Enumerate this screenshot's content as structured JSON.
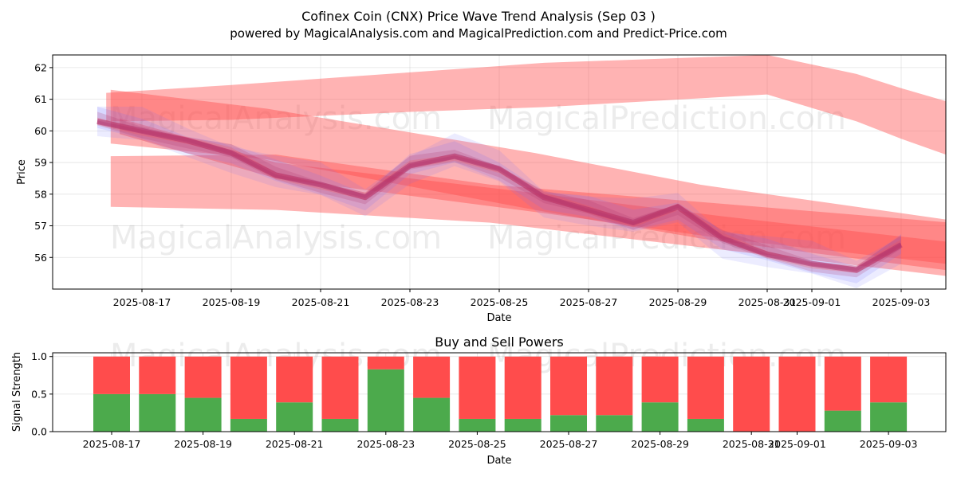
{
  "figure": {
    "title": "Cofinex Coin (CNX) Price Wave Trend Analysis (Sep 03 )",
    "subtitle": "powered by MagicalAnalysis.com and MagicalPrediction.com and Predict-Price.com",
    "watermarks": [
      "MagicalAnalysis.com",
      "MagicalPrediction.com",
      "MagicalAnalysis.com",
      "MagicalPrediction.com",
      "MagicalAnalysis.com",
      "MagicalPrediction.com"
    ]
  },
  "colors": {
    "red_band": "#ff4a4a",
    "blue_band": "#6f6fff",
    "purple_band": "#b0306a",
    "buy": "#4caa4c",
    "sell": "#ff4c4c"
  },
  "chart_data": [
    {
      "type": "area",
      "title": "",
      "xlabel": "Date",
      "ylabel": "Price",
      "xlim": [
        "2025-08-15",
        "2025-09-04"
      ],
      "ylim": [
        55.0,
        62.4
      ],
      "yticks": [
        56,
        57,
        58,
        59,
        60,
        61,
        62
      ],
      "xtick_labels": [
        "2025-08-17",
        "2025-08-19",
        "2025-08-21",
        "2025-08-23",
        "2025-08-25",
        "2025-08-27",
        "2025-08-29",
        "2025-08-31",
        "2025-09-01",
        "2025-09-03"
      ],
      "xtick_dates": [
        "2025-08-17",
        "2025-08-19",
        "2025-08-21",
        "2025-08-23",
        "2025-08-25",
        "2025-08-27",
        "2025-08-29",
        "2025-08-31",
        "2025-09-01",
        "2025-09-03"
      ],
      "dates": [
        "2025-08-16",
        "2025-08-17",
        "2025-08-18",
        "2025-08-19",
        "2025-08-20",
        "2025-08-21",
        "2025-08-22",
        "2025-08-23",
        "2025-08-24",
        "2025-08-25",
        "2025-08-26",
        "2025-08-27",
        "2025-08-28",
        "2025-08-29",
        "2025-08-30",
        "2025-08-31",
        "2025-09-01",
        "2025-09-02",
        "2025-09-03"
      ],
      "price": [
        60.3,
        60.0,
        59.7,
        59.3,
        58.6,
        58.3,
        57.9,
        58.9,
        59.2,
        58.8,
        57.9,
        57.5,
        57.1,
        57.6,
        56.6,
        56.1,
        55.8,
        55.6,
        56.4
      ],
      "bands": [
        {
          "name": "upper-trend",
          "color": "red",
          "upper": [
            [
              15.2,
              61.2
            ],
            [
              18,
              61.45
            ],
            [
              22,
              61.85
            ],
            [
              25,
              62.15
            ],
            [
              30,
              62.4
            ],
            [
              32,
              61.8
            ],
            [
              33,
              61.35
            ],
            [
              34.1,
              60.9
            ]
          ],
          "lower": [
            [
              15.2,
              60.3
            ],
            [
              18,
              60.35
            ],
            [
              22,
              60.6
            ],
            [
              25,
              60.75
            ],
            [
              30,
              61.15
            ],
            [
              32,
              60.3
            ],
            [
              33,
              59.75
            ],
            [
              34.1,
              59.2
            ]
          ]
        },
        {
          "name": "upper-broad",
          "color": "red",
          "upper": [
            [
              15.3,
              61.3
            ],
            [
              18.8,
              60.7
            ],
            [
              24.8,
              59.3
            ],
            [
              28.5,
              58.3
            ],
            [
              34,
              57.2
            ]
          ],
          "lower": [
            [
              15.3,
              59.6
            ],
            [
              18.8,
              59.1
            ],
            [
              24.8,
              57.5
            ],
            [
              28.5,
              56.6
            ],
            [
              34,
              55.6
            ]
          ]
        },
        {
          "name": "lower-broad",
          "color": "red",
          "upper": [
            [
              15.3,
              59.2
            ],
            [
              19,
              59.25
            ],
            [
              23.8,
              58.3
            ],
            [
              34.1,
              57.1
            ]
          ],
          "lower": [
            [
              15.3,
              57.6
            ],
            [
              19,
              57.5
            ],
            [
              23.8,
              57.1
            ],
            [
              34.1,
              55.4
            ]
          ]
        },
        {
          "name": "trend-lower",
          "color": "red",
          "upper": [
            [
              15.5,
              60.4
            ],
            [
              19,
              59.0
            ],
            [
              25,
              58.0
            ],
            [
              29,
              57.3
            ],
            [
              34,
              56.5
            ]
          ],
          "lower": [
            [
              15.5,
              59.9
            ],
            [
              19,
              58.5
            ],
            [
              25,
              57.4
            ],
            [
              29,
              56.6
            ],
            [
              34,
              55.8
            ]
          ]
        }
      ],
      "wave_offsets": [
        0.85,
        0.55,
        0.35,
        0.2,
        0.1
      ]
    },
    {
      "type": "bar",
      "title": "Buy and Sell Powers",
      "xlabel": "Date",
      "ylabel": "Signal Strength",
      "ylim": [
        0,
        1.05
      ],
      "yticks": [
        0.0,
        0.5,
        1.0
      ],
      "ytick_labels": [
        "0.0",
        "0.5",
        "1.0"
      ],
      "xtick_labels": [
        "2025-08-17",
        "2025-08-19",
        "2025-08-21",
        "2025-08-23",
        "2025-08-25",
        "2025-08-27",
        "2025-08-29",
        "2025-08-31",
        "2025-09-01",
        "2025-09-03"
      ],
      "xtick_dates": [
        "2025-08-17",
        "2025-08-19",
        "2025-08-21",
        "2025-08-23",
        "2025-08-25",
        "2025-08-27",
        "2025-08-29",
        "2025-08-31",
        "2025-09-01",
        "2025-09-03"
      ],
      "dates": [
        "2025-08-17",
        "2025-08-18",
        "2025-08-19",
        "2025-08-20",
        "2025-08-21",
        "2025-08-22",
        "2025-08-23",
        "2025-08-24",
        "2025-08-25",
        "2025-08-26",
        "2025-08-27",
        "2025-08-28",
        "2025-08-29",
        "2025-08-30",
        "2025-08-31",
        "2025-09-01",
        "2025-09-02",
        "2025-09-03"
      ],
      "series": [
        {
          "name": "Buy",
          "values": [
            0.5,
            0.5,
            0.45,
            0.17,
            0.39,
            0.17,
            0.83,
            0.45,
            0.17,
            0.17,
            0.22,
            0.22,
            0.39,
            0.17,
            0.0,
            0.0,
            0.28,
            0.39
          ]
        },
        {
          "name": "Sell",
          "values": [
            0.5,
            0.5,
            0.55,
            0.83,
            0.61,
            0.83,
            0.17,
            0.55,
            0.83,
            0.83,
            0.78,
            0.78,
            0.61,
            0.83,
            1.0,
            1.0,
            0.72,
            0.61
          ]
        }
      ]
    }
  ]
}
